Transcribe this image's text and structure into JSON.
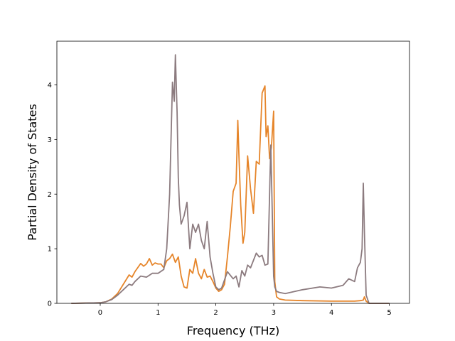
{
  "chart_data": {
    "type": "line",
    "title": "",
    "xlabel": "Frequency (THz)",
    "ylabel": "Partial Density of States",
    "xlim": [
      -0.75,
      5.35
    ],
    "ylim": [
      0,
      4.8
    ],
    "xticks": [
      0,
      1,
      2,
      3,
      4,
      5
    ],
    "yticks": [
      0,
      1,
      2,
      3,
      4
    ],
    "grid": false,
    "legend": "none",
    "series": [
      {
        "color": "#e6852a",
        "x": [
          -0.5,
          0.0,
          0.1,
          0.2,
          0.3,
          0.4,
          0.5,
          0.55,
          0.6,
          0.7,
          0.75,
          0.8,
          0.85,
          0.9,
          0.95,
          1.0,
          1.05,
          1.1,
          1.15,
          1.2,
          1.25,
          1.3,
          1.35,
          1.4,
          1.45,
          1.5,
          1.55,
          1.6,
          1.65,
          1.7,
          1.75,
          1.8,
          1.85,
          1.9,
          1.95,
          2.0,
          2.05,
          2.1,
          2.15,
          2.2,
          2.25,
          2.3,
          2.35,
          2.38,
          2.4,
          2.43,
          2.47,
          2.5,
          2.55,
          2.6,
          2.65,
          2.7,
          2.75,
          2.8,
          2.85,
          2.87,
          2.9,
          2.93,
          2.96,
          3.0,
          3.02,
          3.05,
          3.1,
          3.2,
          3.5,
          4.0,
          4.2,
          4.4,
          4.5,
          4.55,
          4.57,
          4.6,
          4.65,
          5.0
        ],
        "y": [
          0.0,
          0.01,
          0.03,
          0.08,
          0.18,
          0.35,
          0.52,
          0.48,
          0.58,
          0.73,
          0.68,
          0.72,
          0.82,
          0.7,
          0.74,
          0.72,
          0.72,
          0.65,
          0.78,
          0.82,
          0.9,
          0.75,
          0.85,
          0.5,
          0.3,
          0.28,
          0.62,
          0.55,
          0.82,
          0.55,
          0.45,
          0.62,
          0.48,
          0.5,
          0.4,
          0.28,
          0.22,
          0.25,
          0.35,
          0.85,
          1.4,
          2.05,
          2.2,
          3.35,
          2.7,
          1.8,
          1.1,
          1.3,
          2.7,
          2.1,
          1.65,
          2.6,
          2.55,
          3.85,
          3.98,
          3.05,
          3.25,
          2.65,
          2.85,
          3.52,
          0.4,
          0.12,
          0.08,
          0.06,
          0.05,
          0.04,
          0.04,
          0.04,
          0.05,
          0.06,
          0.12,
          0.04,
          0.0,
          0.0
        ]
      },
      {
        "color": "#8c7b7f",
        "x": [
          -0.5,
          0.0,
          0.1,
          0.2,
          0.3,
          0.4,
          0.5,
          0.55,
          0.6,
          0.7,
          0.8,
          0.9,
          1.0,
          1.1,
          1.15,
          1.2,
          1.25,
          1.28,
          1.3,
          1.33,
          1.35,
          1.37,
          1.4,
          1.45,
          1.5,
          1.55,
          1.6,
          1.65,
          1.7,
          1.75,
          1.8,
          1.85,
          1.9,
          1.95,
          2.0,
          2.05,
          2.1,
          2.2,
          2.3,
          2.35,
          2.4,
          2.45,
          2.5,
          2.55,
          2.6,
          2.7,
          2.75,
          2.8,
          2.85,
          2.9,
          2.95,
          3.0,
          3.02,
          3.05,
          3.1,
          3.2,
          3.5,
          3.8,
          4.0,
          4.2,
          4.3,
          4.4,
          4.45,
          4.5,
          4.53,
          4.55,
          4.57,
          4.6,
          4.65,
          5.0
        ],
        "y": [
          0.0,
          0.01,
          0.03,
          0.07,
          0.15,
          0.25,
          0.35,
          0.33,
          0.4,
          0.5,
          0.48,
          0.55,
          0.55,
          0.62,
          1.0,
          2.0,
          4.05,
          3.7,
          4.55,
          3.5,
          2.3,
          1.8,
          1.45,
          1.6,
          1.85,
          1.0,
          1.45,
          1.3,
          1.45,
          1.15,
          1.0,
          1.5,
          0.85,
          0.55,
          0.3,
          0.25,
          0.28,
          0.58,
          0.45,
          0.5,
          0.3,
          0.6,
          0.5,
          0.7,
          0.65,
          0.92,
          0.85,
          0.88,
          0.7,
          0.72,
          2.9,
          0.5,
          0.3,
          0.22,
          0.2,
          0.18,
          0.25,
          0.3,
          0.28,
          0.33,
          0.45,
          0.4,
          0.65,
          0.75,
          1.0,
          2.2,
          1.3,
          0.15,
          0.0,
          0.0
        ]
      }
    ]
  }
}
